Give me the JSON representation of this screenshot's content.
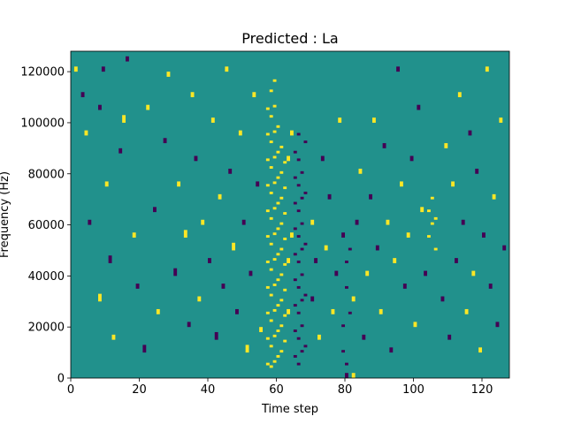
{
  "chart_data": {
    "type": "heatmap",
    "title": "Predicted : La",
    "xlabel": "Time step",
    "ylabel": "Frequency (Hz)",
    "xlim": [
      0,
      128
    ],
    "ylim": [
      0,
      128000
    ],
    "x_ticks": [
      0,
      20,
      40,
      60,
      80,
      100,
      120
    ],
    "x_tick_labels": [
      "0",
      "20",
      "40",
      "60",
      "80",
      "100",
      "120"
    ],
    "y_ticks": [
      0,
      20000,
      40000,
      60000,
      80000,
      100000,
      120000
    ],
    "y_tick_labels": [
      "0",
      "20000",
      "40000",
      "60000",
      "80000",
      "100000",
      "120000"
    ],
    "value_levels": [
      -1,
      0,
      1
    ],
    "colors": {
      "-1": "#440154",
      "0": "#21918c",
      "1": "#fde725"
    },
    "grid": false,
    "background_value": 0,
    "time_bins": 128,
    "freq_bins": 128,
    "bin_width_hz": 1000,
    "cells": [
      [
        1,
        120,
        2,
        1
      ],
      [
        3,
        110,
        2,
        -1
      ],
      [
        4,
        95,
        2,
        1
      ],
      [
        5,
        60,
        2,
        -1
      ],
      [
        8,
        30,
        3,
        1
      ],
      [
        8,
        105,
        2,
        -1
      ],
      [
        9,
        120,
        2,
        -1
      ],
      [
        10,
        75,
        2,
        1
      ],
      [
        11,
        45,
        3,
        -1
      ],
      [
        12,
        15,
        2,
        1
      ],
      [
        14,
        88,
        2,
        -1
      ],
      [
        15,
        100,
        3,
        1
      ],
      [
        16,
        124,
        2,
        -1
      ],
      [
        18,
        55,
        2,
        1
      ],
      [
        19,
        35,
        2,
        -1
      ],
      [
        21,
        10,
        3,
        -1
      ],
      [
        22,
        105,
        2,
        1
      ],
      [
        24,
        65,
        2,
        -1
      ],
      [
        25,
        25,
        2,
        1
      ],
      [
        27,
        92,
        2,
        -1
      ],
      [
        28,
        118,
        2,
        1
      ],
      [
        30,
        40,
        3,
        -1
      ],
      [
        31,
        75,
        2,
        1
      ],
      [
        33,
        55,
        3,
        1
      ],
      [
        34,
        20,
        2,
        -1
      ],
      [
        35,
        110,
        2,
        1
      ],
      [
        36,
        85,
        2,
        -1
      ],
      [
        37,
        30,
        2,
        1
      ],
      [
        38,
        60,
        2,
        1
      ],
      [
        40,
        45,
        2,
        -1
      ],
      [
        41,
        100,
        2,
        1
      ],
      [
        42,
        15,
        3,
        -1
      ],
      [
        43,
        70,
        2,
        1
      ],
      [
        44,
        35,
        2,
        -1
      ],
      [
        45,
        120,
        2,
        1
      ],
      [
        46,
        80,
        2,
        -1
      ],
      [
        47,
        50,
        3,
        1
      ],
      [
        48,
        25,
        2,
        -1
      ],
      [
        49,
        95,
        2,
        1
      ],
      [
        50,
        60,
        2,
        -1
      ],
      [
        51,
        10,
        3,
        1
      ],
      [
        52,
        40,
        2,
        -1
      ],
      [
        53,
        110,
        2,
        1
      ],
      [
        54,
        75,
        2,
        -1
      ],
      [
        55,
        18,
        2,
        1
      ],
      [
        57,
        5,
        1,
        1
      ],
      [
        57,
        15,
        1,
        1
      ],
      [
        57,
        25,
        1,
        1
      ],
      [
        57,
        35,
        1,
        1
      ],
      [
        57,
        45,
        1,
        1
      ],
      [
        57,
        55,
        1,
        1
      ],
      [
        57,
        65,
        1,
        1
      ],
      [
        57,
        75,
        1,
        1
      ],
      [
        57,
        85,
        1,
        1
      ],
      [
        57,
        95,
        1,
        1
      ],
      [
        57,
        105,
        1,
        1
      ],
      [
        58,
        4,
        1,
        1
      ],
      [
        58,
        12,
        1,
        1
      ],
      [
        58,
        22,
        1,
        1
      ],
      [
        58,
        32,
        1,
        1
      ],
      [
        58,
        42,
        1,
        1
      ],
      [
        58,
        52,
        1,
        1
      ],
      [
        58,
        62,
        1,
        1
      ],
      [
        58,
        72,
        1,
        1
      ],
      [
        58,
        82,
        1,
        1
      ],
      [
        58,
        92,
        1,
        1
      ],
      [
        58,
        102,
        1,
        1
      ],
      [
        58,
        112,
        1,
        1
      ],
      [
        59,
        6,
        1,
        1
      ],
      [
        59,
        16,
        1,
        1
      ],
      [
        59,
        26,
        1,
        1
      ],
      [
        59,
        36,
        1,
        1
      ],
      [
        59,
        46,
        1,
        1
      ],
      [
        59,
        56,
        1,
        1
      ],
      [
        59,
        66,
        1,
        1
      ],
      [
        59,
        76,
        1,
        1
      ],
      [
        59,
        86,
        1,
        1
      ],
      [
        59,
        96,
        1,
        1
      ],
      [
        59,
        106,
        1,
        1
      ],
      [
        59,
        116,
        1,
        1
      ],
      [
        60,
        8,
        1,
        1
      ],
      [
        60,
        18,
        1,
        1
      ],
      [
        60,
        28,
        1,
        1
      ],
      [
        60,
        38,
        1,
        1
      ],
      [
        60,
        48,
        1,
        1
      ],
      [
        60,
        58,
        1,
        1
      ],
      [
        60,
        68,
        1,
        1
      ],
      [
        60,
        78,
        1,
        1
      ],
      [
        60,
        88,
        1,
        1
      ],
      [
        60,
        98,
        1,
        1
      ],
      [
        61,
        10,
        1,
        1
      ],
      [
        61,
        20,
        1,
        1
      ],
      [
        61,
        30,
        1,
        1
      ],
      [
        61,
        40,
        1,
        1
      ],
      [
        61,
        50,
        1,
        1
      ],
      [
        61,
        60,
        1,
        1
      ],
      [
        61,
        70,
        1,
        1
      ],
      [
        61,
        80,
        1,
        1
      ],
      [
        61,
        90,
        1,
        1
      ],
      [
        62,
        14,
        1,
        1
      ],
      [
        62,
        24,
        1,
        1
      ],
      [
        62,
        34,
        1,
        1
      ],
      [
        62,
        44,
        1,
        1
      ],
      [
        62,
        54,
        1,
        1
      ],
      [
        62,
        64,
        1,
        1
      ],
      [
        62,
        74,
        1,
        1
      ],
      [
        62,
        84,
        1,
        1
      ],
      [
        63,
        25,
        2,
        1
      ],
      [
        63,
        45,
        2,
        1
      ],
      [
        63,
        85,
        2,
        1
      ],
      [
        64,
        55,
        2,
        1
      ],
      [
        64,
        95,
        2,
        1
      ],
      [
        65,
        8,
        1,
        -1
      ],
      [
        65,
        18,
        1,
        -1
      ],
      [
        65,
        28,
        1,
        -1
      ],
      [
        65,
        38,
        1,
        -1
      ],
      [
        65,
        48,
        1,
        -1
      ],
      [
        65,
        58,
        1,
        -1
      ],
      [
        65,
        68,
        1,
        -1
      ],
      [
        65,
        78,
        1,
        -1
      ],
      [
        65,
        88,
        1,
        -1
      ],
      [
        66,
        5,
        1,
        -1
      ],
      [
        66,
        15,
        1,
        -1
      ],
      [
        66,
        25,
        1,
        -1
      ],
      [
        66,
        35,
        1,
        -1
      ],
      [
        66,
        45,
        1,
        -1
      ],
      [
        66,
        55,
        1,
        -1
      ],
      [
        66,
        65,
        1,
        -1
      ],
      [
        66,
        75,
        1,
        -1
      ],
      [
        66,
        85,
        1,
        -1
      ],
      [
        66,
        95,
        1,
        -1
      ],
      [
        67,
        10,
        1,
        -1
      ],
      [
        67,
        20,
        1,
        -1
      ],
      [
        67,
        30,
        1,
        -1
      ],
      [
        67,
        40,
        1,
        -1
      ],
      [
        67,
        50,
        1,
        -1
      ],
      [
        67,
        60,
        1,
        -1
      ],
      [
        67,
        70,
        1,
        -1
      ],
      [
        67,
        80,
        1,
        -1
      ],
      [
        68,
        12,
        1,
        -1
      ],
      [
        68,
        32,
        1,
        -1
      ],
      [
        68,
        52,
        1,
        -1
      ],
      [
        68,
        72,
        1,
        -1
      ],
      [
        68,
        92,
        1,
        -1
      ],
      [
        70,
        30,
        2,
        -1
      ],
      [
        70,
        60,
        2,
        1
      ],
      [
        71,
        45,
        2,
        -1
      ],
      [
        72,
        15,
        2,
        1
      ],
      [
        73,
        85,
        2,
        -1
      ],
      [
        74,
        50,
        2,
        1
      ],
      [
        75,
        70,
        2,
        -1
      ],
      [
        76,
        25,
        2,
        1
      ],
      [
        77,
        40,
        2,
        -1
      ],
      [
        78,
        100,
        2,
        1
      ],
      [
        79,
        55,
        2,
        -1
      ],
      [
        79,
        10,
        1,
        -1
      ],
      [
        79,
        20,
        1,
        -1
      ],
      [
        80,
        5,
        1,
        -1
      ],
      [
        80,
        35,
        1,
        -1
      ],
      [
        80,
        45,
        1,
        -1
      ],
      [
        81,
        25,
        1,
        -1
      ],
      [
        81,
        50,
        1,
        -1
      ],
      [
        82,
        0,
        2,
        1
      ],
      [
        80,
        0,
        2,
        -1
      ],
      [
        82,
        30,
        2,
        1
      ],
      [
        83,
        60,
        2,
        -1
      ],
      [
        84,
        80,
        2,
        1
      ],
      [
        85,
        15,
        2,
        -1
      ],
      [
        86,
        40,
        2,
        1
      ],
      [
        87,
        70,
        2,
        -1
      ],
      [
        88,
        100,
        2,
        1
      ],
      [
        89,
        50,
        2,
        -1
      ],
      [
        90,
        25,
        2,
        1
      ],
      [
        91,
        90,
        2,
        -1
      ],
      [
        92,
        60,
        2,
        1
      ],
      [
        93,
        10,
        2,
        -1
      ],
      [
        94,
        45,
        2,
        1
      ],
      [
        95,
        120,
        2,
        -1
      ],
      [
        96,
        75,
        2,
        1
      ],
      [
        97,
        35,
        2,
        -1
      ],
      [
        98,
        55,
        2,
        1
      ],
      [
        99,
        85,
        2,
        -1
      ],
      [
        100,
        20,
        2,
        1
      ],
      [
        101,
        105,
        2,
        -1
      ],
      [
        102,
        65,
        2,
        1
      ],
      [
        103,
        40,
        2,
        -1
      ],
      [
        104,
        55,
        1,
        1
      ],
      [
        104,
        65,
        1,
        1
      ],
      [
        105,
        60,
        1,
        1
      ],
      [
        105,
        70,
        1,
        1
      ],
      [
        106,
        50,
        1,
        1
      ],
      [
        106,
        62,
        1,
        1
      ],
      [
        108,
        30,
        2,
        -1
      ],
      [
        109,
        90,
        2,
        1
      ],
      [
        110,
        15,
        2,
        -1
      ],
      [
        111,
        75,
        2,
        1
      ],
      [
        112,
        45,
        2,
        -1
      ],
      [
        113,
        110,
        2,
        1
      ],
      [
        114,
        60,
        2,
        -1
      ],
      [
        115,
        25,
        2,
        1
      ],
      [
        116,
        95,
        2,
        -1
      ],
      [
        117,
        40,
        2,
        1
      ],
      [
        118,
        80,
        2,
        -1
      ],
      [
        119,
        10,
        2,
        1
      ],
      [
        120,
        55,
        2,
        -1
      ],
      [
        121,
        120,
        2,
        1
      ],
      [
        122,
        35,
        2,
        -1
      ],
      [
        123,
        70,
        2,
        1
      ],
      [
        124,
        20,
        2,
        -1
      ],
      [
        125,
        100,
        2,
        1
      ],
      [
        126,
        50,
        2,
        -1
      ]
    ]
  }
}
